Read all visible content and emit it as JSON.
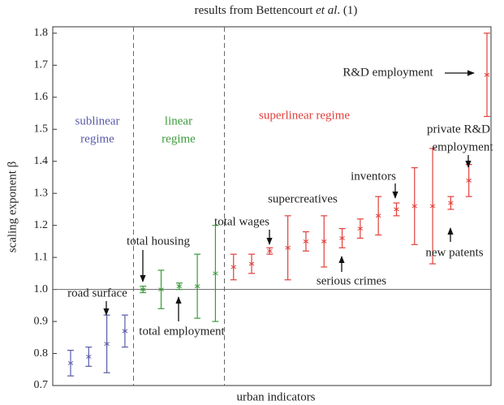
{
  "chart_data": {
    "type": "errorbar-scatter",
    "title_parts": [
      "results from Bettencourt ",
      "et al",
      ". (1)"
    ],
    "x_label": "urban indicators",
    "y_label": "scaling exponent β",
    "ylim": [
      0.7,
      1.82
    ],
    "yticks": [
      0.7,
      0.8,
      0.9,
      {
        "value": 1.0,
        "label": "1.0"
      },
      1.1,
      1.2,
      1.3,
      1.4,
      1.5,
      1.6,
      1.7,
      1.8
    ],
    "reference_line": 1.0,
    "categories": [
      null,
      null,
      null,
      null,
      null,
      null,
      null,
      null,
      null,
      null,
      null,
      null,
      null,
      null,
      null,
      null,
      null,
      null,
      null,
      null,
      null,
      null,
      null,
      null
    ],
    "series": [
      {
        "name": "sublinear regime",
        "color": "#5a5aa8",
        "start": 0,
        "values": [
          0.77,
          0.79,
          0.83,
          0.87
        ],
        "errors": [
          0.04,
          0.03,
          0.09,
          0.05
        ]
      },
      {
        "name": "linear regime",
        "color": "#3a9a3a",
        "start": 4,
        "values": [
          1.0,
          1.0,
          1.01,
          1.01,
          1.05
        ],
        "errors": [
          0.01,
          0.06,
          0.01,
          0.1,
          0.15
        ]
      },
      {
        "name": "superlinear regime",
        "color": "#e0403c",
        "start": 9,
        "values": [
          1.07,
          1.08,
          1.12,
          1.13,
          1.15,
          1.15,
          1.16,
          1.19,
          1.23,
          1.25,
          1.26,
          1.26,
          1.27,
          1.34,
          1.67
        ],
        "errors": [
          0.04,
          0.03,
          0.01,
          0.1,
          0.03,
          0.08,
          0.03,
          0.03,
          0.06,
          0.02,
          0.12,
          0.18,
          0.02,
          0.05,
          0.13
        ]
      }
    ],
    "region_labels": [
      [
        "sublinear",
        "regime"
      ],
      [
        "linear",
        "regime"
      ],
      [
        "superlinear regime"
      ]
    ],
    "annotations": [
      "R&D employment",
      "private R&D",
      "employment",
      "inventors",
      "supercreatives",
      "total wages",
      "serious crimes",
      "new patents",
      "total housing",
      "total employment",
      "road surface"
    ]
  }
}
